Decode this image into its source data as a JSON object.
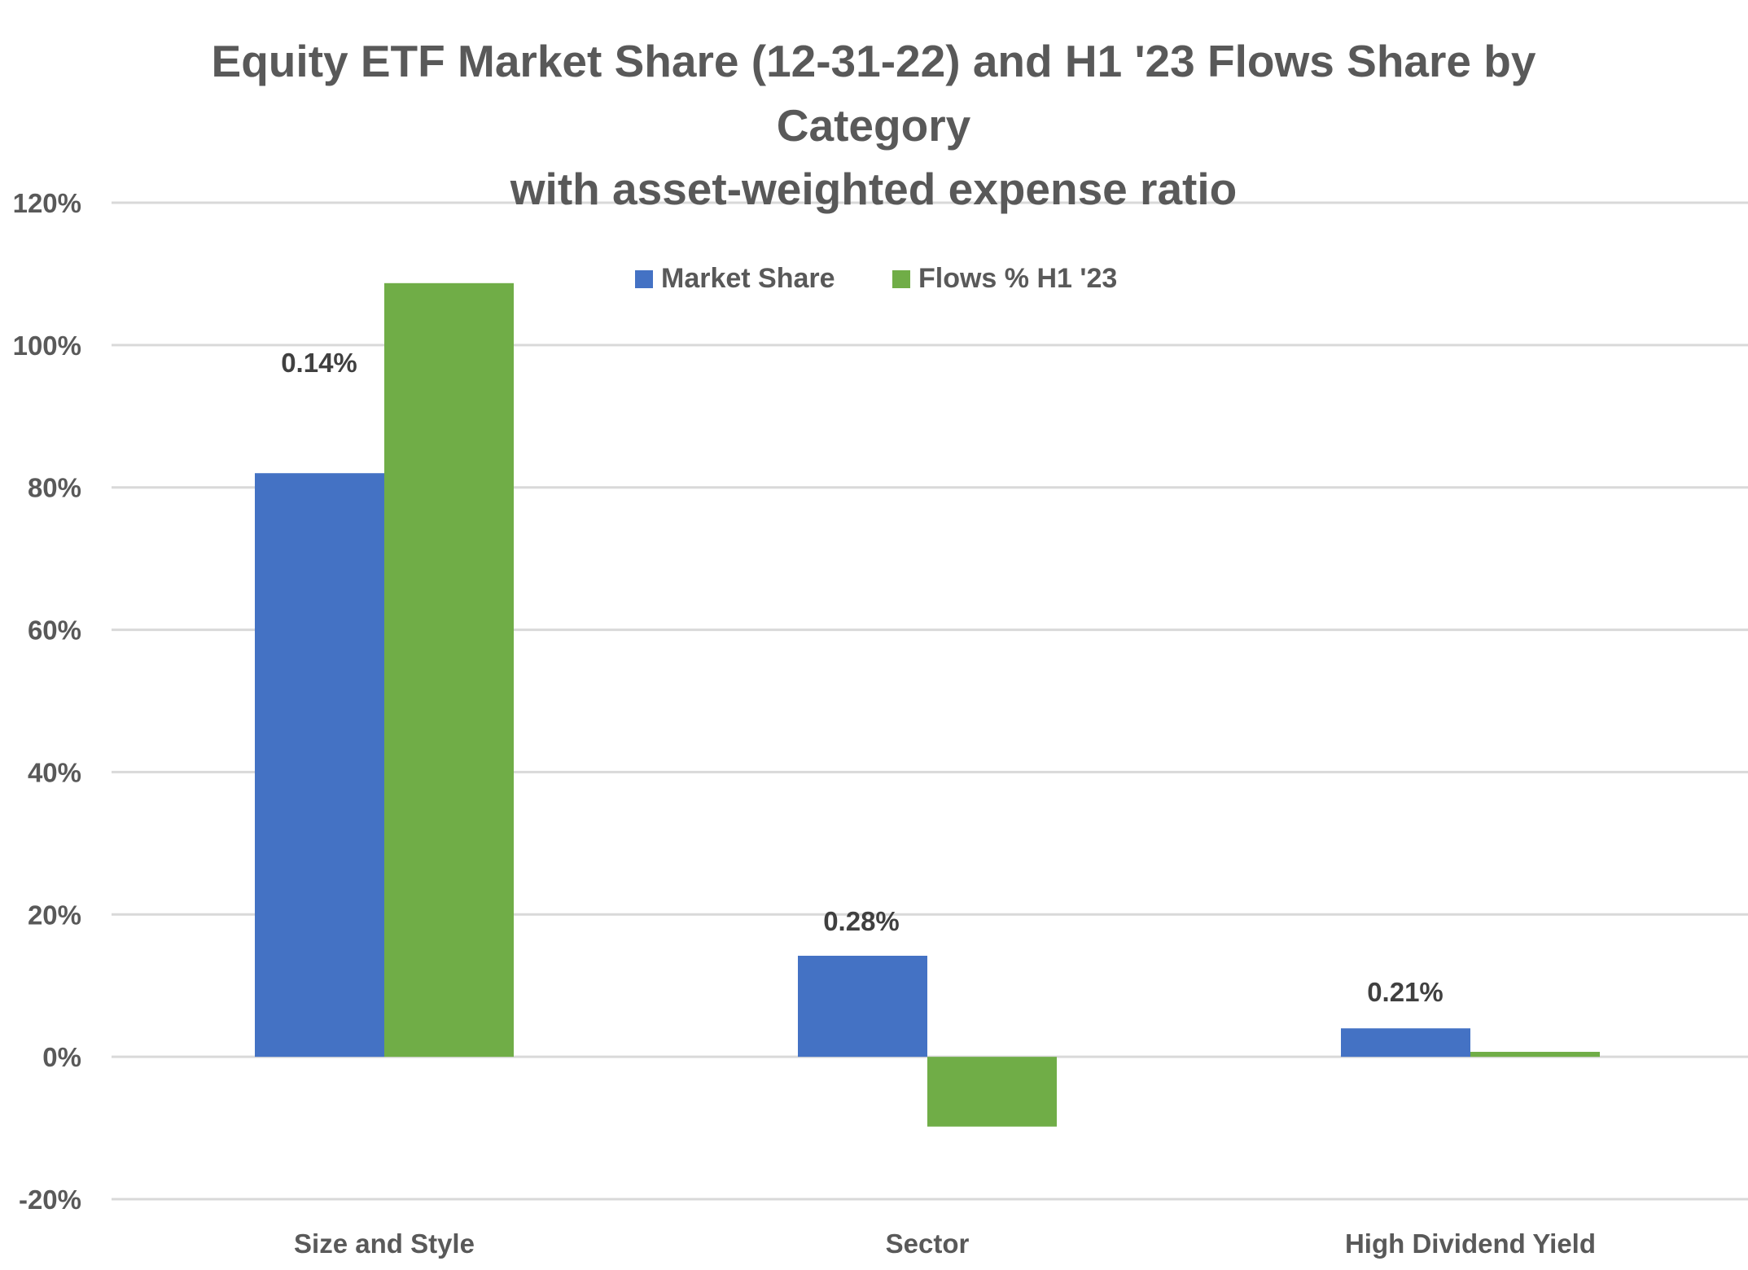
{
  "chart_data": {
    "type": "bar",
    "title": [
      "Equity ETF Market Share (12-31-22) and H1 '23 Flows Share by",
      "Category",
      "with asset-weighted expense ratio"
    ],
    "categories": [
      "Size and Style",
      "Sector",
      "High Dividend Yield"
    ],
    "series": [
      {
        "name": "Market Share",
        "color": "#4472C4",
        "values": [
          82,
          14.2,
          4.0
        ]
      },
      {
        "name": "Flows % H1 '23",
        "color": "#70AD47",
        "values": [
          108.7,
          -9.8,
          0.7
        ]
      }
    ],
    "data_labels": [
      "0.14%",
      "0.28%",
      "0.21%"
    ],
    "ylim": [
      -20,
      120
    ],
    "yticks": [
      -20,
      0,
      20,
      40,
      60,
      80,
      100,
      120
    ],
    "ytick_labels": [
      "-20%",
      "0%",
      "20%",
      "40%",
      "60%",
      "80%",
      "100%",
      "120%"
    ],
    "xlabel": "",
    "ylabel": "",
    "grid": true,
    "legend": "top-center"
  }
}
